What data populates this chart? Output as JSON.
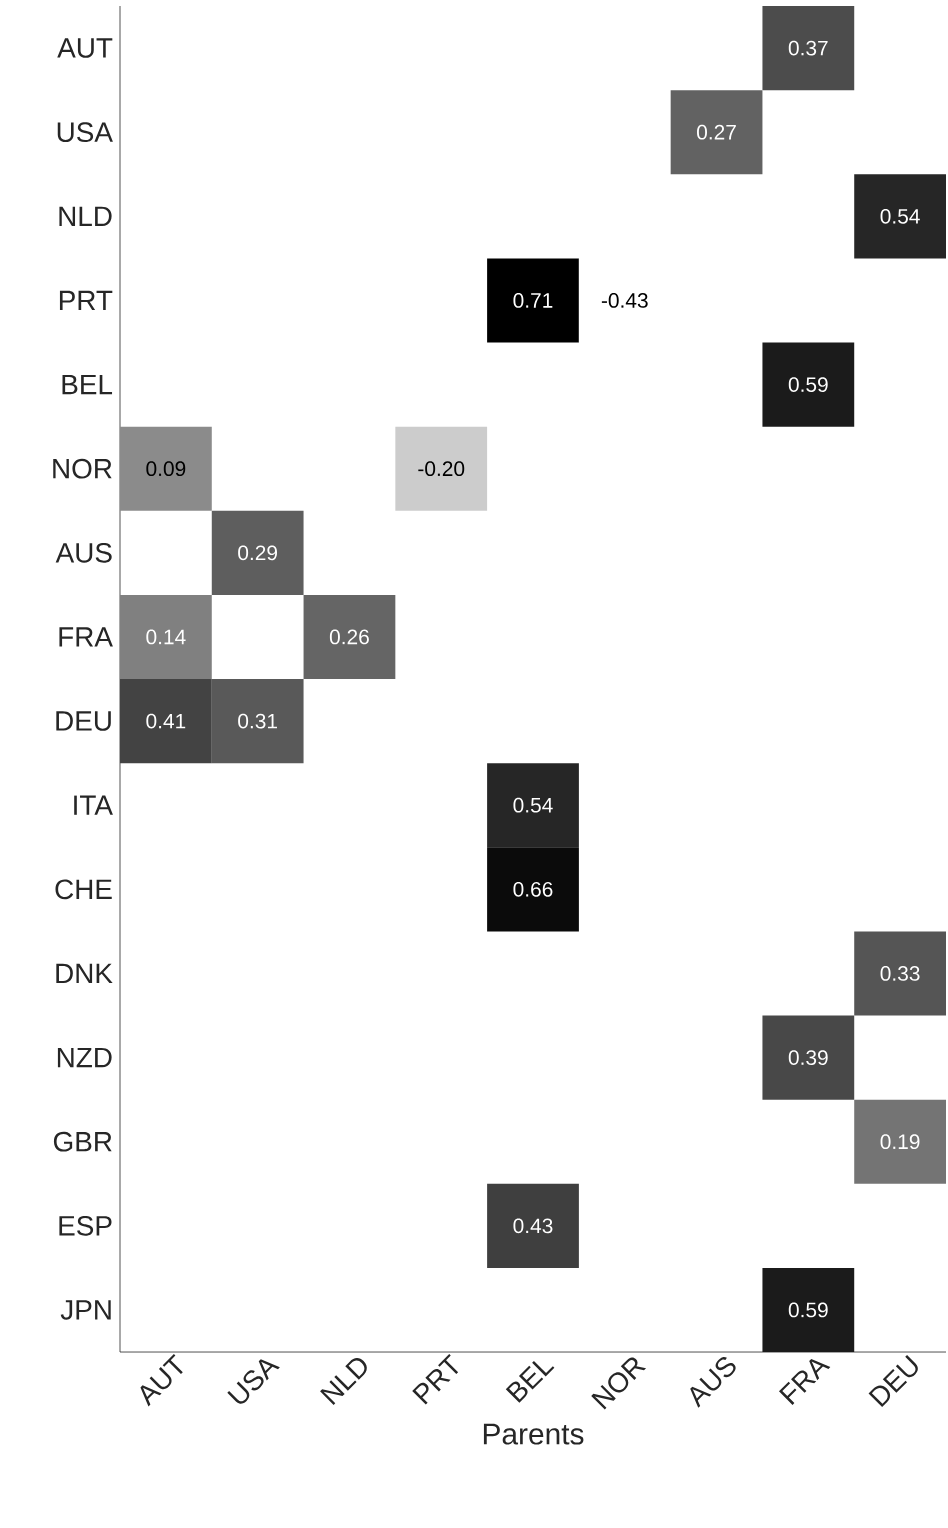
{
  "chart_data": {
    "type": "heatmap",
    "xlabel": "Parents",
    "categories": [
      "AUT",
      "USA",
      "NLD",
      "PRT",
      "BEL",
      "NOR",
      "AUS",
      "FRA",
      "DEU"
    ],
    "y_categories": [
      "AUT",
      "USA",
      "NLD",
      "PRT",
      "BEL",
      "NOR",
      "AUS",
      "FRA",
      "DEU",
      "ITA",
      "CHE",
      "DNK",
      "NZD",
      "GBR",
      "ESP",
      "JPN"
    ],
    "cells": [
      [
        null,
        null,
        null,
        null,
        null,
        null,
        null,
        0.37,
        null
      ],
      [
        null,
        null,
        null,
        null,
        null,
        null,
        0.27,
        null,
        null
      ],
      [
        null,
        null,
        null,
        null,
        null,
        null,
        null,
        null,
        0.54
      ],
      [
        null,
        null,
        null,
        null,
        0.71,
        -0.43,
        null,
        null,
        null
      ],
      [
        null,
        null,
        null,
        null,
        null,
        null,
        null,
        0.59,
        null
      ],
      [
        0.09,
        null,
        null,
        -0.2,
        null,
        null,
        null,
        null,
        null
      ],
      [
        null,
        0.29,
        null,
        null,
        null,
        null,
        null,
        null,
        null
      ],
      [
        0.14,
        null,
        0.26,
        null,
        null,
        null,
        null,
        null,
        null
      ],
      [
        0.41,
        0.31,
        null,
        null,
        null,
        null,
        null,
        null,
        null
      ],
      [
        null,
        null,
        null,
        null,
        0.54,
        null,
        null,
        null,
        null
      ],
      [
        null,
        null,
        null,
        null,
        0.66,
        null,
        null,
        null,
        null
      ],
      [
        null,
        null,
        null,
        null,
        null,
        null,
        null,
        null,
        0.33
      ],
      [
        null,
        null,
        null,
        null,
        null,
        null,
        null,
        0.39,
        null
      ],
      [
        null,
        null,
        null,
        null,
        null,
        null,
        null,
        null,
        0.19
      ],
      [
        null,
        null,
        null,
        null,
        0.43,
        null,
        null,
        null,
        null
      ],
      [
        null,
        null,
        null,
        null,
        null,
        null,
        null,
        0.59,
        null
      ]
    ],
    "cell_labels": [
      [
        null,
        null,
        null,
        null,
        null,
        null,
        null,
        "0.37",
        null
      ],
      [
        null,
        null,
        null,
        null,
        null,
        null,
        "0.27",
        null,
        null
      ],
      [
        null,
        null,
        null,
        null,
        null,
        null,
        null,
        null,
        "0.54"
      ],
      [
        null,
        null,
        null,
        null,
        "0.71",
        "-0.43",
        null,
        null,
        null
      ],
      [
        null,
        null,
        null,
        null,
        null,
        null,
        null,
        "0.59",
        null
      ],
      [
        "0.09",
        null,
        null,
        "-0.20",
        null,
        null,
        null,
        null,
        null
      ],
      [
        null,
        "0.29",
        null,
        null,
        null,
        null,
        null,
        null,
        null
      ],
      [
        "0.14",
        null,
        "0.26",
        null,
        null,
        null,
        null,
        null,
        null
      ],
      [
        "0.41",
        "0.31",
        null,
        null,
        null,
        null,
        null,
        null,
        null
      ],
      [
        null,
        null,
        null,
        null,
        "0.54",
        null,
        null,
        null,
        null
      ],
      [
        null,
        null,
        null,
        null,
        "0.66",
        null,
        null,
        null,
        null
      ],
      [
        null,
        null,
        null,
        null,
        null,
        null,
        null,
        null,
        "0.33"
      ],
      [
        null,
        null,
        null,
        null,
        null,
        null,
        null,
        "0.39",
        null
      ],
      [
        null,
        null,
        null,
        null,
        null,
        null,
        null,
        null,
        "0.19"
      ],
      [
        null,
        null,
        null,
        null,
        "0.43",
        null,
        null,
        null,
        null
      ],
      [
        null,
        null,
        null,
        null,
        null,
        null,
        null,
        "0.59",
        null
      ]
    ]
  }
}
